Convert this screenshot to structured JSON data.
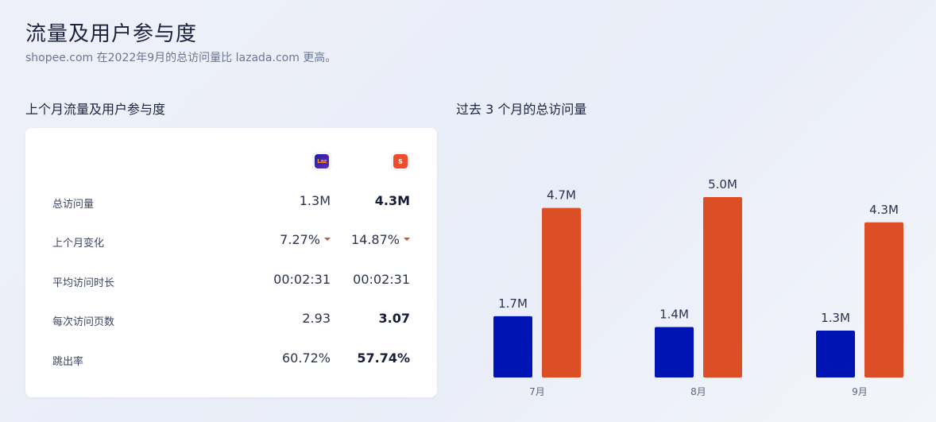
{
  "header": {
    "title": "流量及用户参与度",
    "subtitle": "shopee.com 在2022年9月的总访问量比 lazada.com 更高。"
  },
  "engagement": {
    "section_title": "上个月流量及用户参与度",
    "logos": [
      {
        "name": "lazada",
        "icon": "lazada-logo-icon",
        "text": "Laz",
        "color": "#1a1f9c"
      },
      {
        "name": "shopee",
        "icon": "shopee-logo-icon",
        "text": "S",
        "color": "#ee4d2d"
      }
    ],
    "rows": [
      {
        "label": "总访问量",
        "a": "1.3M",
        "b": "4.3M",
        "b_bold": true
      },
      {
        "label": "上个月变化",
        "a": "7.27%",
        "b": "14.87%",
        "a_arrow": "down",
        "b_arrow": "down"
      },
      {
        "label": "平均访问时长",
        "a": "00:02:31",
        "b": "00:02:31"
      },
      {
        "label": "每次访问页数",
        "a": "2.93",
        "b": "3.07",
        "b_bold": true
      },
      {
        "label": "跳出率",
        "a": "60.72%",
        "b": "57.74%",
        "b_bold": true
      }
    ]
  },
  "chart_data": {
    "type": "bar",
    "title": "过去 3 个月的总访问量",
    "categories": [
      "7月",
      "8月",
      "9月"
    ],
    "series": [
      {
        "values": [
          1.7,
          1.4,
          1.3
        ],
        "labels": [
          "1.7M",
          "1.4M",
          "1.3M"
        ],
        "color": "#0014b4"
      },
      {
        "values": [
          4.7,
          5.0,
          4.3
        ],
        "labels": [
          "4.7M",
          "5.0M",
          "4.3M"
        ],
        "color": "#dc4f26"
      }
    ],
    "unit": "M",
    "ylim": [
      0,
      5.0
    ],
    "grid": false,
    "legend": "none"
  }
}
